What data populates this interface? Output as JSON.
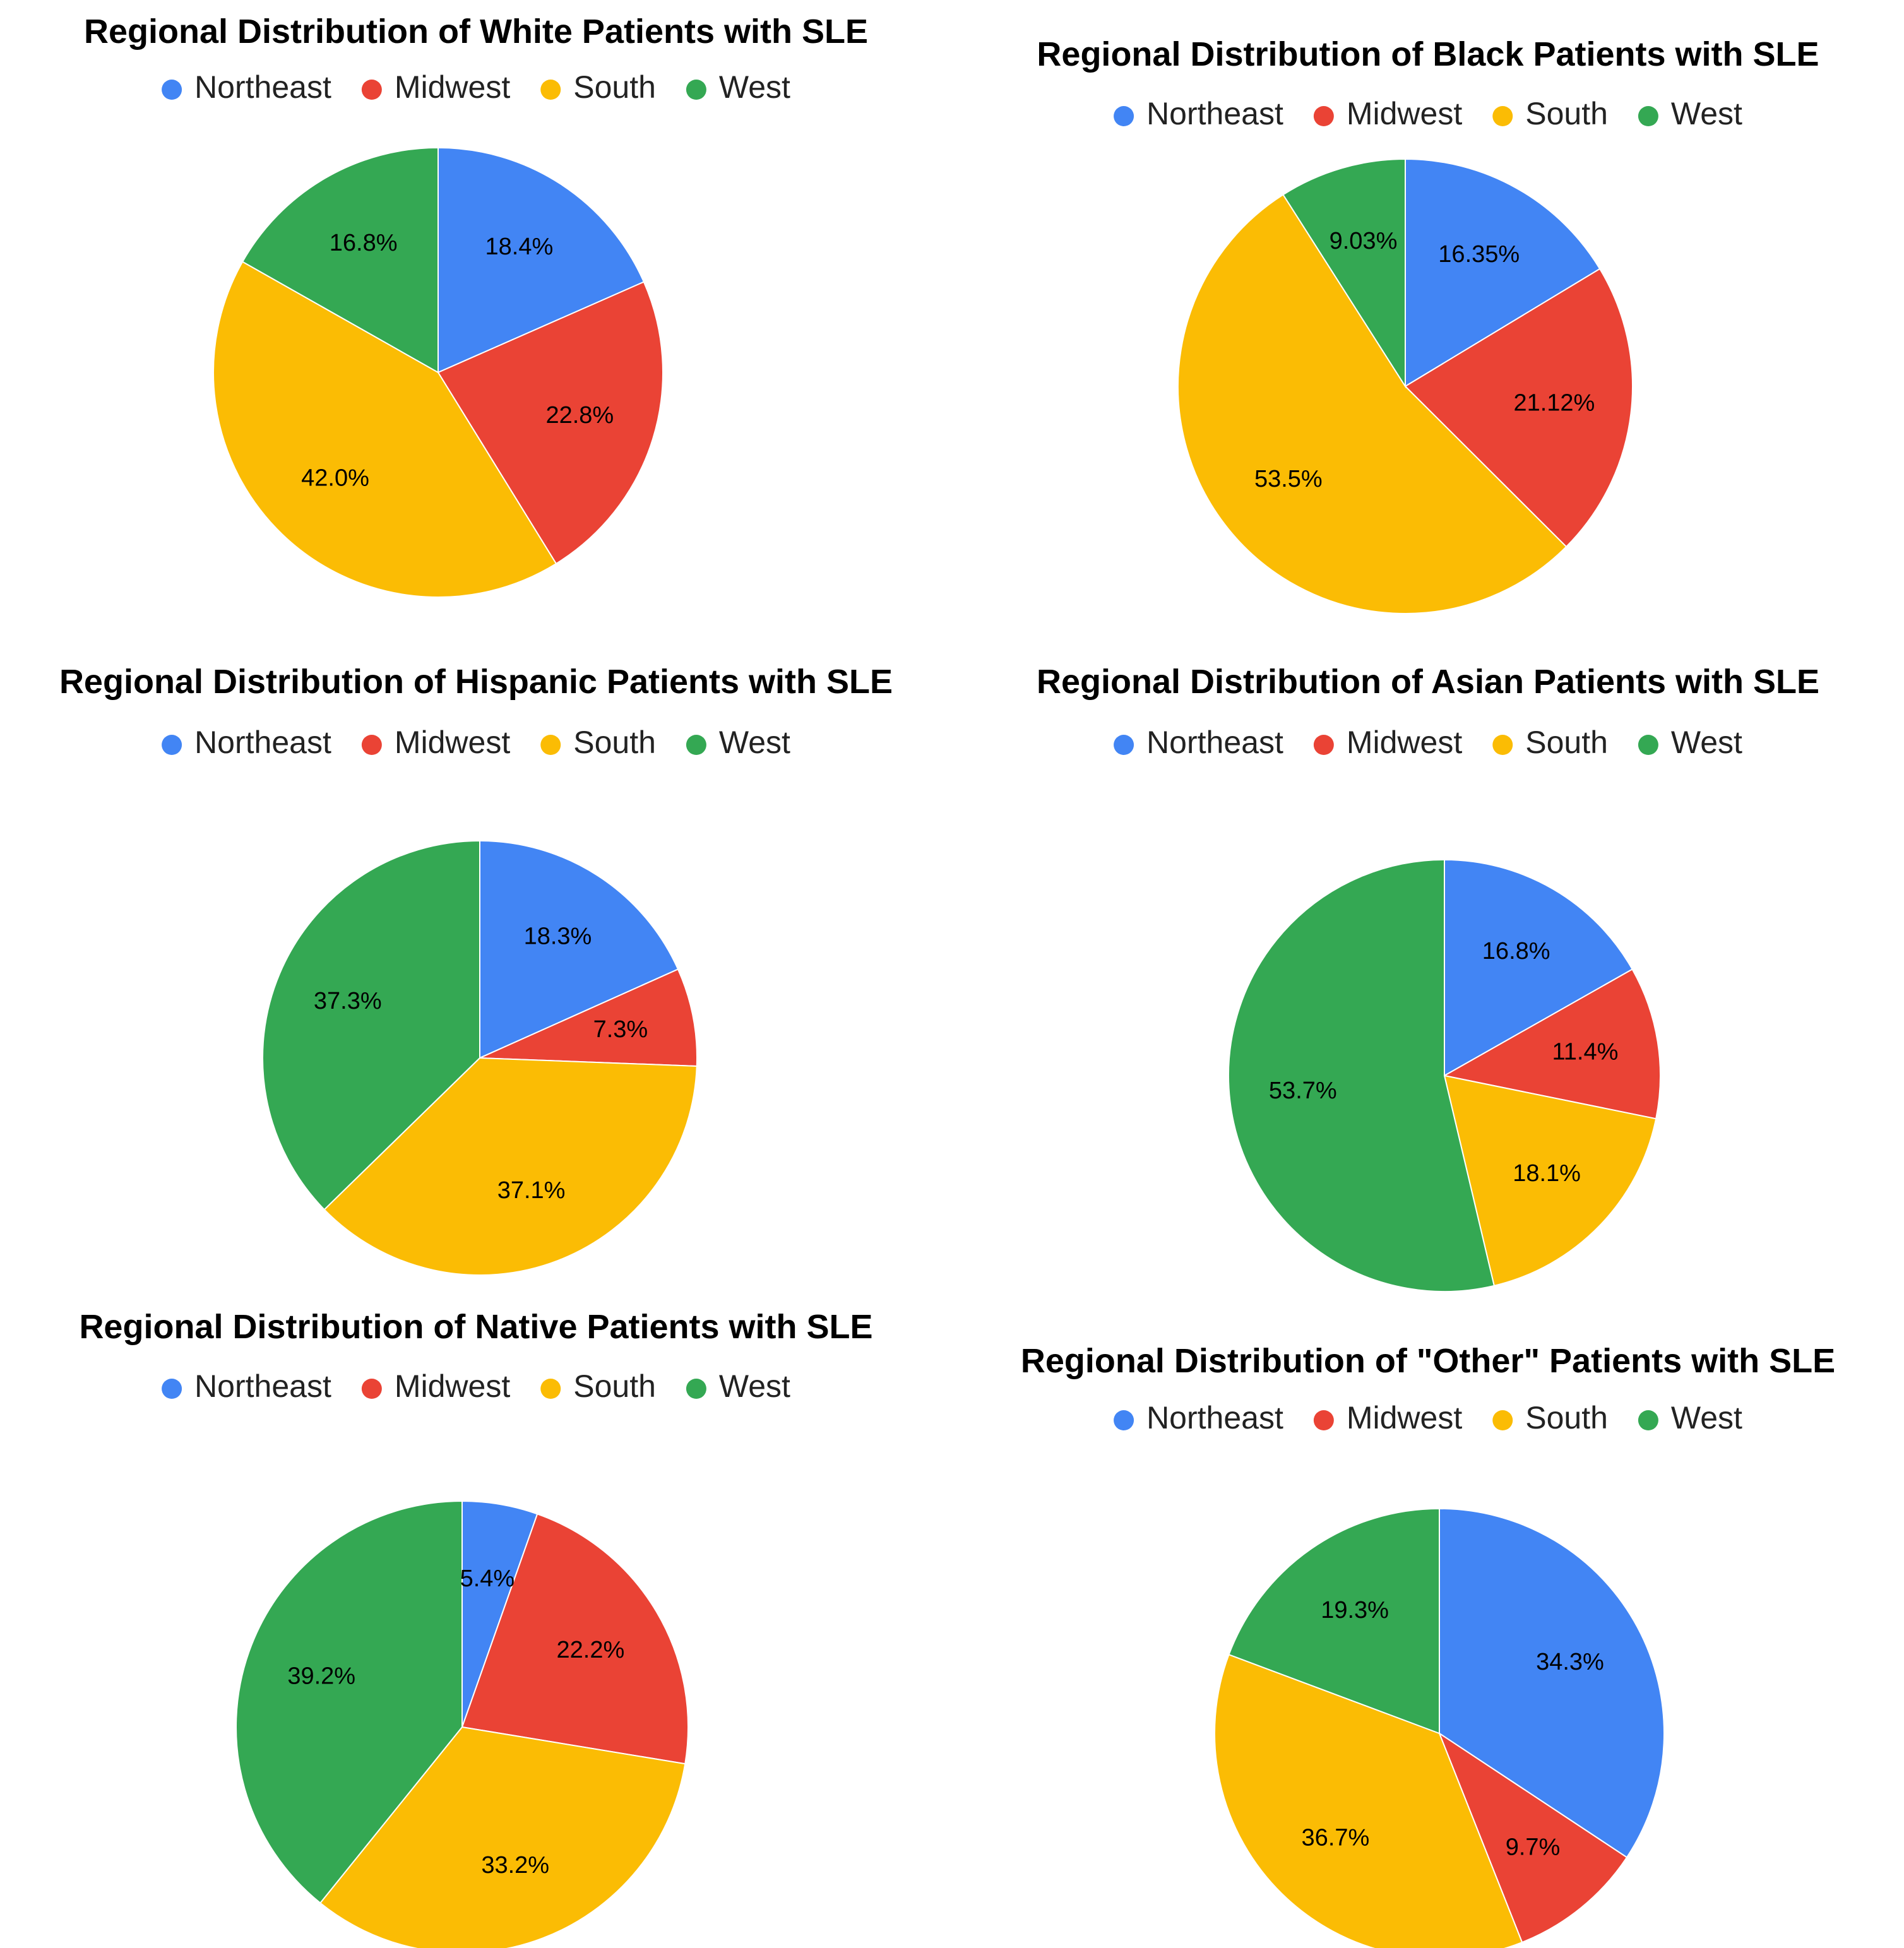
{
  "legend": {
    "northeast": "Northeast",
    "midwest": "Midwest",
    "south": "South",
    "west": "West"
  },
  "colors": {
    "northeast": "#4285F4",
    "midwest": "#EA4335",
    "south": "#FBBC04",
    "west": "#34A853"
  },
  "chart_data": [
    {
      "type": "pie",
      "title": "Regional Distribution of White Patients with SLE",
      "categories": [
        "Northeast",
        "Midwest",
        "South",
        "West"
      ],
      "values": [
        18.4,
        22.8,
        42.0,
        16.8
      ],
      "labels": [
        "18.4%",
        "22.8%",
        "42.0%",
        "16.8%"
      ],
      "legend_position": "top"
    },
    {
      "type": "pie",
      "title": "Regional Distribution of Black Patients with SLE",
      "categories": [
        "Northeast",
        "Midwest",
        "South",
        "West"
      ],
      "values": [
        16.35,
        21.12,
        53.5,
        9.03
      ],
      "labels": [
        "16.35%",
        "21.12%",
        "53.5%",
        "9.03%"
      ],
      "legend_position": "top"
    },
    {
      "type": "pie",
      "title": "Regional Distribution of Hispanic Patients with SLE",
      "categories": [
        "Northeast",
        "Midwest",
        "South",
        "West"
      ],
      "values": [
        18.3,
        7.3,
        37.1,
        37.3
      ],
      "labels": [
        "18.3%",
        "7.3%",
        "37.1%",
        "37.3%"
      ],
      "legend_position": "top"
    },
    {
      "type": "pie",
      "title": "Regional Distribution of Asian Patients with SLE",
      "categories": [
        "Northeast",
        "Midwest",
        "South",
        "West"
      ],
      "values": [
        16.8,
        11.4,
        18.1,
        53.7
      ],
      "labels": [
        "16.8%",
        "11.4%",
        "18.1%",
        "53.7%"
      ],
      "legend_position": "top"
    },
    {
      "type": "pie",
      "title": "Regional Distribution of Native Patients with SLE",
      "categories": [
        "Northeast",
        "Midwest",
        "South",
        "West"
      ],
      "values": [
        5.4,
        22.2,
        33.2,
        39.2
      ],
      "labels": [
        "5.4%",
        "22.2%",
        "33.2%",
        "39.2%"
      ],
      "legend_position": "top"
    },
    {
      "type": "pie",
      "title": "Regional Distribution of \"Other\" Patients with SLE",
      "categories": [
        "Northeast",
        "Midwest",
        "South",
        "West"
      ],
      "values": [
        34.3,
        9.7,
        36.7,
        19.3
      ],
      "labels": [
        "34.3%",
        "9.7%",
        "36.7%",
        "19.3%"
      ],
      "legend_position": "top"
    }
  ]
}
